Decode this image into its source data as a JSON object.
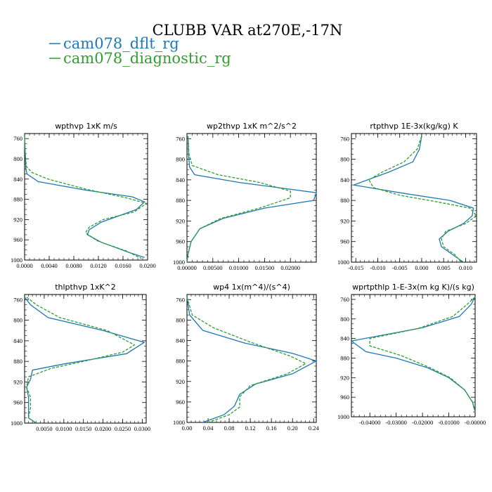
{
  "title": "CLUBB VAR at270E,-17N",
  "legend": {
    "placement": "top-left",
    "entries": [
      {
        "name": "cam078_dflt_rg",
        "color": "#1f77b4",
        "dash": "solid"
      },
      {
        "name": "cam078_diagnostic_rg",
        "color": "#2ca02c",
        "dash": "dashed"
      }
    ]
  },
  "chart_data": [
    {
      "type": "line",
      "title": "wpthvp  1xK m/s",
      "xlim": [
        0,
        0.02
      ],
      "ylim": [
        1000,
        750
      ],
      "xticks": [
        0,
        0.004,
        0.008,
        0.012,
        0.016,
        0.02
      ],
      "xtick_labels": [
        "0.0000",
        "0.0040",
        "0.0080",
        "0.0120",
        "0.0160",
        "0.0200"
      ],
      "yticks": [
        760,
        800,
        840,
        880,
        920,
        960,
        1000
      ],
      "ytick_labels": [
        "760",
        "800",
        "840",
        "880",
        "920",
        "960",
        "1000"
      ],
      "series": [
        {
          "name": "cam078_dflt_rg",
          "points": [
            [
              0.0,
              755
            ],
            [
              0.0001,
              790
            ],
            [
              0.0002,
              820
            ],
            [
              0.0004,
              830
            ],
            [
              0.0022,
              845
            ],
            [
              0.01,
              862
            ],
            [
              0.0175,
              875
            ],
            [
              0.0195,
              885
            ],
            [
              0.0182,
              900
            ],
            [
              0.0125,
              925
            ],
            [
              0.0105,
              940
            ],
            [
              0.0102,
              950
            ],
            [
              0.0125,
              965
            ],
            [
              0.017,
              985
            ],
            [
              0.0195,
              995
            ]
          ]
        },
        {
          "name": "cam078_diagnostic_rg",
          "points": [
            [
              0.0,
              755
            ],
            [
              0.0001,
              790
            ],
            [
              0.0003,
              815
            ],
            [
              0.0012,
              827
            ],
            [
              0.0038,
              840
            ],
            [
              0.01,
              860
            ],
            [
              0.0165,
              877
            ],
            [
              0.0198,
              888
            ],
            [
              0.0178,
              905
            ],
            [
              0.0128,
              920
            ],
            [
              0.0105,
              935
            ],
            [
              0.0099,
              946
            ],
            [
              0.0118,
              962
            ],
            [
              0.0165,
              982
            ],
            [
              0.019,
              997
            ]
          ]
        }
      ]
    },
    {
      "type": "line",
      "title": "wp2thvp  1xK m^2/s^2",
      "xlim": [
        0,
        0.025
      ],
      "ylim": [
        1000,
        750
      ],
      "xticks": [
        0,
        0.005,
        0.01,
        0.015,
        0.02
      ],
      "xtick_labels": [
        "0.00000",
        "0.00500",
        "0.01000",
        "0.01500",
        "0.02000"
      ],
      "yticks": [
        760,
        800,
        840,
        880,
        920,
        960,
        1000
      ],
      "ytick_labels": [
        "760",
        "800",
        "840",
        "880",
        "920",
        "960",
        "1000"
      ],
      "series": [
        {
          "name": "cam078_dflt_rg",
          "points": [
            [
              0.0002,
              755
            ],
            [
              0.0003,
              790
            ],
            [
              0.0005,
              815
            ],
            [
              0.0015,
              830
            ],
            [
              0.01,
              845
            ],
            [
              0.025,
              865
            ],
            [
              0.0245,
              880
            ],
            [
              0.015,
              895
            ],
            [
              0.007,
              915
            ],
            [
              0.0025,
              935
            ],
            [
              0.0008,
              960
            ],
            [
              0.0002,
              985
            ],
            [
              0.0,
              1000
            ]
          ]
        },
        {
          "name": "cam078_diagnostic_rg",
          "points": [
            [
              0.0002,
              755
            ],
            [
              0.0004,
              790
            ],
            [
              0.001,
              812
            ],
            [
              0.006,
              830
            ],
            [
              0.014,
              845
            ],
            [
              0.02,
              862
            ],
            [
              0.02,
              875
            ],
            [
              0.014,
              895
            ],
            [
              0.0065,
              915
            ],
            [
              0.0025,
              935
            ],
            [
              0.0008,
              960
            ],
            [
              0.0002,
              985
            ],
            [
              0.0,
              1000
            ]
          ]
        }
      ]
    },
    {
      "type": "line",
      "title": "rtpthvp  1E-3x(kg/kg) K",
      "xlim": [
        -0.016,
        0.0125
      ],
      "ylim": [
        1000,
        750
      ],
      "xticks": [
        -0.015,
        -0.01,
        -0.005,
        0,
        0.005,
        0.01
      ],
      "xtick_labels": [
        "-0.015",
        "-0.010",
        "-0.005",
        "0.000",
        "0.005",
        "0.010"
      ],
      "yticks": [
        760,
        800,
        840,
        880,
        920,
        960,
        1000
      ],
      "ytick_labels": [
        "760",
        "800",
        "840",
        "880",
        "920",
        "960",
        "1000"
      ],
      "series": [
        {
          "name": "cam078_dflt_rg",
          "points": [
            [
              0.0,
              755
            ],
            [
              -0.0005,
              780
            ],
            [
              -0.002,
              805
            ],
            [
              -0.0075,
              825
            ],
            [
              -0.0155,
              850
            ],
            [
              -0.005,
              865
            ],
            [
              0.0065,
              880
            ],
            [
              0.0118,
              895
            ],
            [
              0.0115,
              910
            ],
            [
              0.0095,
              925
            ],
            [
              0.006,
              940
            ],
            [
              0.004,
              955
            ],
            [
              0.0045,
              970
            ],
            [
              0.007,
              985
            ],
            [
              0.0095,
              1000
            ]
          ]
        },
        {
          "name": "cam078_diagnostic_rg",
          "points": [
            [
              0.0,
              755
            ],
            [
              -0.001,
              780
            ],
            [
              -0.004,
              805
            ],
            [
              -0.009,
              825
            ],
            [
              -0.012,
              840
            ],
            [
              -0.011,
              855
            ],
            [
              -0.005,
              870
            ],
            [
              0.003,
              882
            ],
            [
              0.011,
              895
            ],
            [
              0.0125,
              910
            ],
            [
              0.01,
              925
            ],
            [
              0.0055,
              940
            ],
            [
              0.0045,
              955
            ],
            [
              0.005,
              970
            ],
            [
              0.0075,
              985
            ],
            [
              0.009,
              1000
            ]
          ]
        }
      ]
    },
    {
      "type": "line",
      "title": "thlpthvp  1xK^2",
      "xlim": [
        0,
        0.031
      ],
      "ylim": [
        1000,
        750
      ],
      "xticks": [
        0.005,
        0.01,
        0.015,
        0.02,
        0.025,
        0.03
      ],
      "xtick_labels": [
        "0.0050",
        "0.0100",
        "0.0150",
        "0.0200",
        "0.0250",
        "0.0300"
      ],
      "yticks": [
        760,
        800,
        840,
        880,
        920,
        960,
        1000
      ],
      "ytick_labels": [
        "760",
        "800",
        "840",
        "880",
        "920",
        "960",
        "1000"
      ],
      "series": [
        {
          "name": "cam078_dflt_rg",
          "points": [
            [
              0.0,
              755
            ],
            [
              0.0015,
              770
            ],
            [
              0.006,
              795
            ],
            [
              0.02,
              820
            ],
            [
              0.0305,
              843
            ],
            [
              0.026,
              865
            ],
            [
              0.01,
              885
            ],
            [
              0.002,
              897
            ],
            [
              0.0015,
              915
            ],
            [
              0.0005,
              930
            ],
            [
              0.001,
              950
            ],
            [
              0.001,
              970
            ],
            [
              0.001,
              990
            ],
            [
              0.003,
              1000
            ]
          ]
        },
        {
          "name": "cam078_diagnostic_rg",
          "points": [
            [
              0.0005,
              755
            ],
            [
              0.003,
              770
            ],
            [
              0.009,
              795
            ],
            [
              0.021,
              820
            ],
            [
              0.028,
              848
            ],
            [
              0.025,
              862
            ],
            [
              0.015,
              880
            ],
            [
              0.007,
              893
            ],
            [
              0.001,
              910
            ],
            [
              0.0005,
              930
            ],
            [
              0.0015,
              950
            ],
            [
              0.0015,
              970
            ],
            [
              0.001,
              990
            ],
            [
              0.003,
              1000
            ]
          ]
        }
      ]
    },
    {
      "type": "line",
      "title": "wp4   1x(m^4)/(s^4)",
      "xlim": [
        0,
        0.245
      ],
      "ylim": [
        1000,
        750
      ],
      "xticks": [
        0,
        0.04,
        0.08,
        0.12,
        0.16,
        0.2,
        0.24
      ],
      "xtick_labels": [
        "0.00",
        "0.04",
        "0.08",
        "0.12",
        "0.16",
        "0.20",
        "0.24"
      ],
      "yticks": [
        760,
        800,
        840,
        880,
        920,
        960,
        1000
      ],
      "ytick_labels": [
        "760",
        "800",
        "840",
        "880",
        "920",
        "960",
        "1000"
      ],
      "series": [
        {
          "name": "cam078_dflt_rg",
          "points": [
            [
              0.0,
              755
            ],
            [
              0.005,
              790
            ],
            [
              0.03,
              820
            ],
            [
              0.11,
              845
            ],
            [
              0.2,
              865
            ],
            [
              0.245,
              880
            ],
            [
              0.2,
              905
            ],
            [
              0.13,
              925
            ],
            [
              0.1,
              945
            ],
            [
              0.09,
              968
            ],
            [
              0.07,
              985
            ],
            [
              0.03,
              1000
            ]
          ]
        },
        {
          "name": "cam078_diagnostic_rg",
          "points": [
            [
              0.0,
              755
            ],
            [
              0.01,
              790
            ],
            [
              0.05,
              815
            ],
            [
              0.12,
              843
            ],
            [
              0.195,
              870
            ],
            [
              0.225,
              885
            ],
            [
              0.19,
              905
            ],
            [
              0.12,
              928
            ],
            [
              0.1,
              950
            ],
            [
              0.1,
              970
            ],
            [
              0.08,
              985
            ],
            [
              0.04,
              1000
            ]
          ]
        }
      ]
    },
    {
      "type": "line",
      "title": "wprtpthlp   1-E-3x(m kg K)/(s kg)",
      "xlim": [
        -0.047,
        0.0
      ],
      "ylim": [
        1000,
        750
      ],
      "xticks": [
        -0.04,
        -0.03,
        -0.02,
        -0.01,
        0
      ],
      "xtick_labels": [
        "-0.04000",
        "-0.03000",
        "-0.02000",
        "-0.01000",
        "-0.00000"
      ],
      "yticks": [
        760,
        800,
        840,
        880,
        920,
        960,
        1000
      ],
      "ytick_labels": [
        "760",
        "800",
        "840",
        "880",
        "920",
        "960",
        "1000"
      ],
      "series": [
        {
          "name": "cam078_dflt_rg",
          "points": [
            [
              0.0,
              755
            ],
            [
              -0.0015,
              770
            ],
            [
              -0.006,
              795
            ],
            [
              -0.02,
              818
            ],
            [
              -0.047,
              845
            ],
            [
              -0.0415,
              867
            ],
            [
              -0.03,
              880
            ],
            [
              -0.018,
              900
            ],
            [
              -0.01,
              920
            ],
            [
              -0.004,
              945
            ],
            [
              -0.001,
              970
            ],
            [
              0.0,
              990
            ]
          ]
        },
        {
          "name": "cam078_diagnostic_rg",
          "points": [
            [
              0.0,
              755
            ],
            [
              -0.003,
              770
            ],
            [
              -0.0085,
              795
            ],
            [
              -0.022,
              820
            ],
            [
              -0.04,
              840
            ],
            [
              -0.04,
              855
            ],
            [
              -0.028,
              875
            ],
            [
              -0.017,
              900
            ],
            [
              -0.0095,
              920
            ],
            [
              -0.004,
              945
            ],
            [
              -0.001,
              970
            ],
            [
              0.0,
              990
            ]
          ]
        }
      ]
    }
  ]
}
